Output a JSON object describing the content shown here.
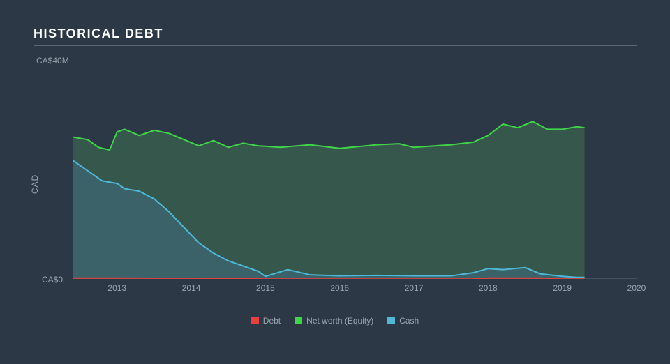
{
  "title": "HISTORICAL DEBT",
  "chart": {
    "type": "area",
    "background_color": "#2c3845",
    "grid_color": "#5a6875",
    "text_color": "#9aa5b0",
    "title_color": "#ffffff",
    "title_fontsize": 18,
    "label_fontsize": 12,
    "y_axis": {
      "label": "CAD",
      "max_label": "CA$40M",
      "zero_label": "CA$0",
      "ylim": [
        0,
        40
      ]
    },
    "x_axis": {
      "ticks": [
        2013,
        2014,
        2015,
        2016,
        2017,
        2018,
        2019,
        2020
      ],
      "xlim": [
        2012.4,
        2020
      ]
    },
    "series": [
      {
        "name": "Net worth (Equity)",
        "stroke": "#3fd549",
        "fill": "#3a624e",
        "fill_opacity": 0.75,
        "stroke_width": 2,
        "data": [
          [
            2012.4,
            27.5
          ],
          [
            2012.6,
            27.0
          ],
          [
            2012.75,
            25.5
          ],
          [
            2012.9,
            25.0
          ],
          [
            2013.0,
            28.5
          ],
          [
            2013.1,
            29.0
          ],
          [
            2013.3,
            27.8
          ],
          [
            2013.5,
            28.8
          ],
          [
            2013.7,
            28.2
          ],
          [
            2013.9,
            27.0
          ],
          [
            2014.1,
            25.8
          ],
          [
            2014.3,
            26.8
          ],
          [
            2014.5,
            25.5
          ],
          [
            2014.7,
            26.3
          ],
          [
            2014.9,
            25.8
          ],
          [
            2015.2,
            25.5
          ],
          [
            2015.6,
            26.0
          ],
          [
            2016.0,
            25.3
          ],
          [
            2016.5,
            26.0
          ],
          [
            2016.8,
            26.2
          ],
          [
            2017.0,
            25.5
          ],
          [
            2017.5,
            26.0
          ],
          [
            2017.8,
            26.5
          ],
          [
            2018.0,
            27.8
          ],
          [
            2018.2,
            30.0
          ],
          [
            2018.4,
            29.3
          ],
          [
            2018.6,
            30.5
          ],
          [
            2018.8,
            29.0
          ],
          [
            2019.0,
            29.0
          ],
          [
            2019.2,
            29.5
          ],
          [
            2019.3,
            29.3
          ]
        ]
      },
      {
        "name": "Cash",
        "stroke": "#4fb8d8",
        "fill": "#3d6672",
        "fill_opacity": 0.75,
        "stroke_width": 2,
        "data": [
          [
            2012.4,
            23.0
          ],
          [
            2012.6,
            21.0
          ],
          [
            2012.8,
            19.0
          ],
          [
            2013.0,
            18.5
          ],
          [
            2013.1,
            17.5
          ],
          [
            2013.3,
            17.0
          ],
          [
            2013.5,
            15.5
          ],
          [
            2013.7,
            13.0
          ],
          [
            2013.9,
            10.0
          ],
          [
            2014.1,
            7.0
          ],
          [
            2014.3,
            5.0
          ],
          [
            2014.5,
            3.5
          ],
          [
            2014.7,
            2.5
          ],
          [
            2014.9,
            1.5
          ],
          [
            2015.0,
            0.5
          ],
          [
            2015.3,
            1.8
          ],
          [
            2015.6,
            0.8
          ],
          [
            2016.0,
            0.6
          ],
          [
            2016.5,
            0.7
          ],
          [
            2017.0,
            0.6
          ],
          [
            2017.5,
            0.6
          ],
          [
            2017.8,
            1.2
          ],
          [
            2018.0,
            2.0
          ],
          [
            2018.2,
            1.8
          ],
          [
            2018.5,
            2.2
          ],
          [
            2018.7,
            1.0
          ],
          [
            2019.0,
            0.5
          ],
          [
            2019.2,
            0.3
          ],
          [
            2019.3,
            0.3
          ]
        ]
      },
      {
        "name": "Debt",
        "stroke": "#e8403a",
        "fill": "#e8403a",
        "fill_opacity": 0.7,
        "stroke_width": 1.5,
        "data": [
          [
            2012.4,
            0.2
          ],
          [
            2013.0,
            0.2
          ],
          [
            2014.0,
            0.15
          ],
          [
            2015.0,
            0.0
          ],
          [
            2016.0,
            0.0
          ],
          [
            2017.0,
            0.0
          ],
          [
            2017.8,
            0.0
          ],
          [
            2018.0,
            0.2
          ],
          [
            2018.7,
            0.2
          ],
          [
            2019.0,
            0.0
          ],
          [
            2019.3,
            0.0
          ]
        ]
      }
    ],
    "legend": {
      "items": [
        {
          "label": "Debt",
          "color": "#e8403a"
        },
        {
          "label": "Net worth (Equity)",
          "color": "#3fd549"
        },
        {
          "label": "Cash",
          "color": "#4fb8d8"
        }
      ]
    }
  }
}
